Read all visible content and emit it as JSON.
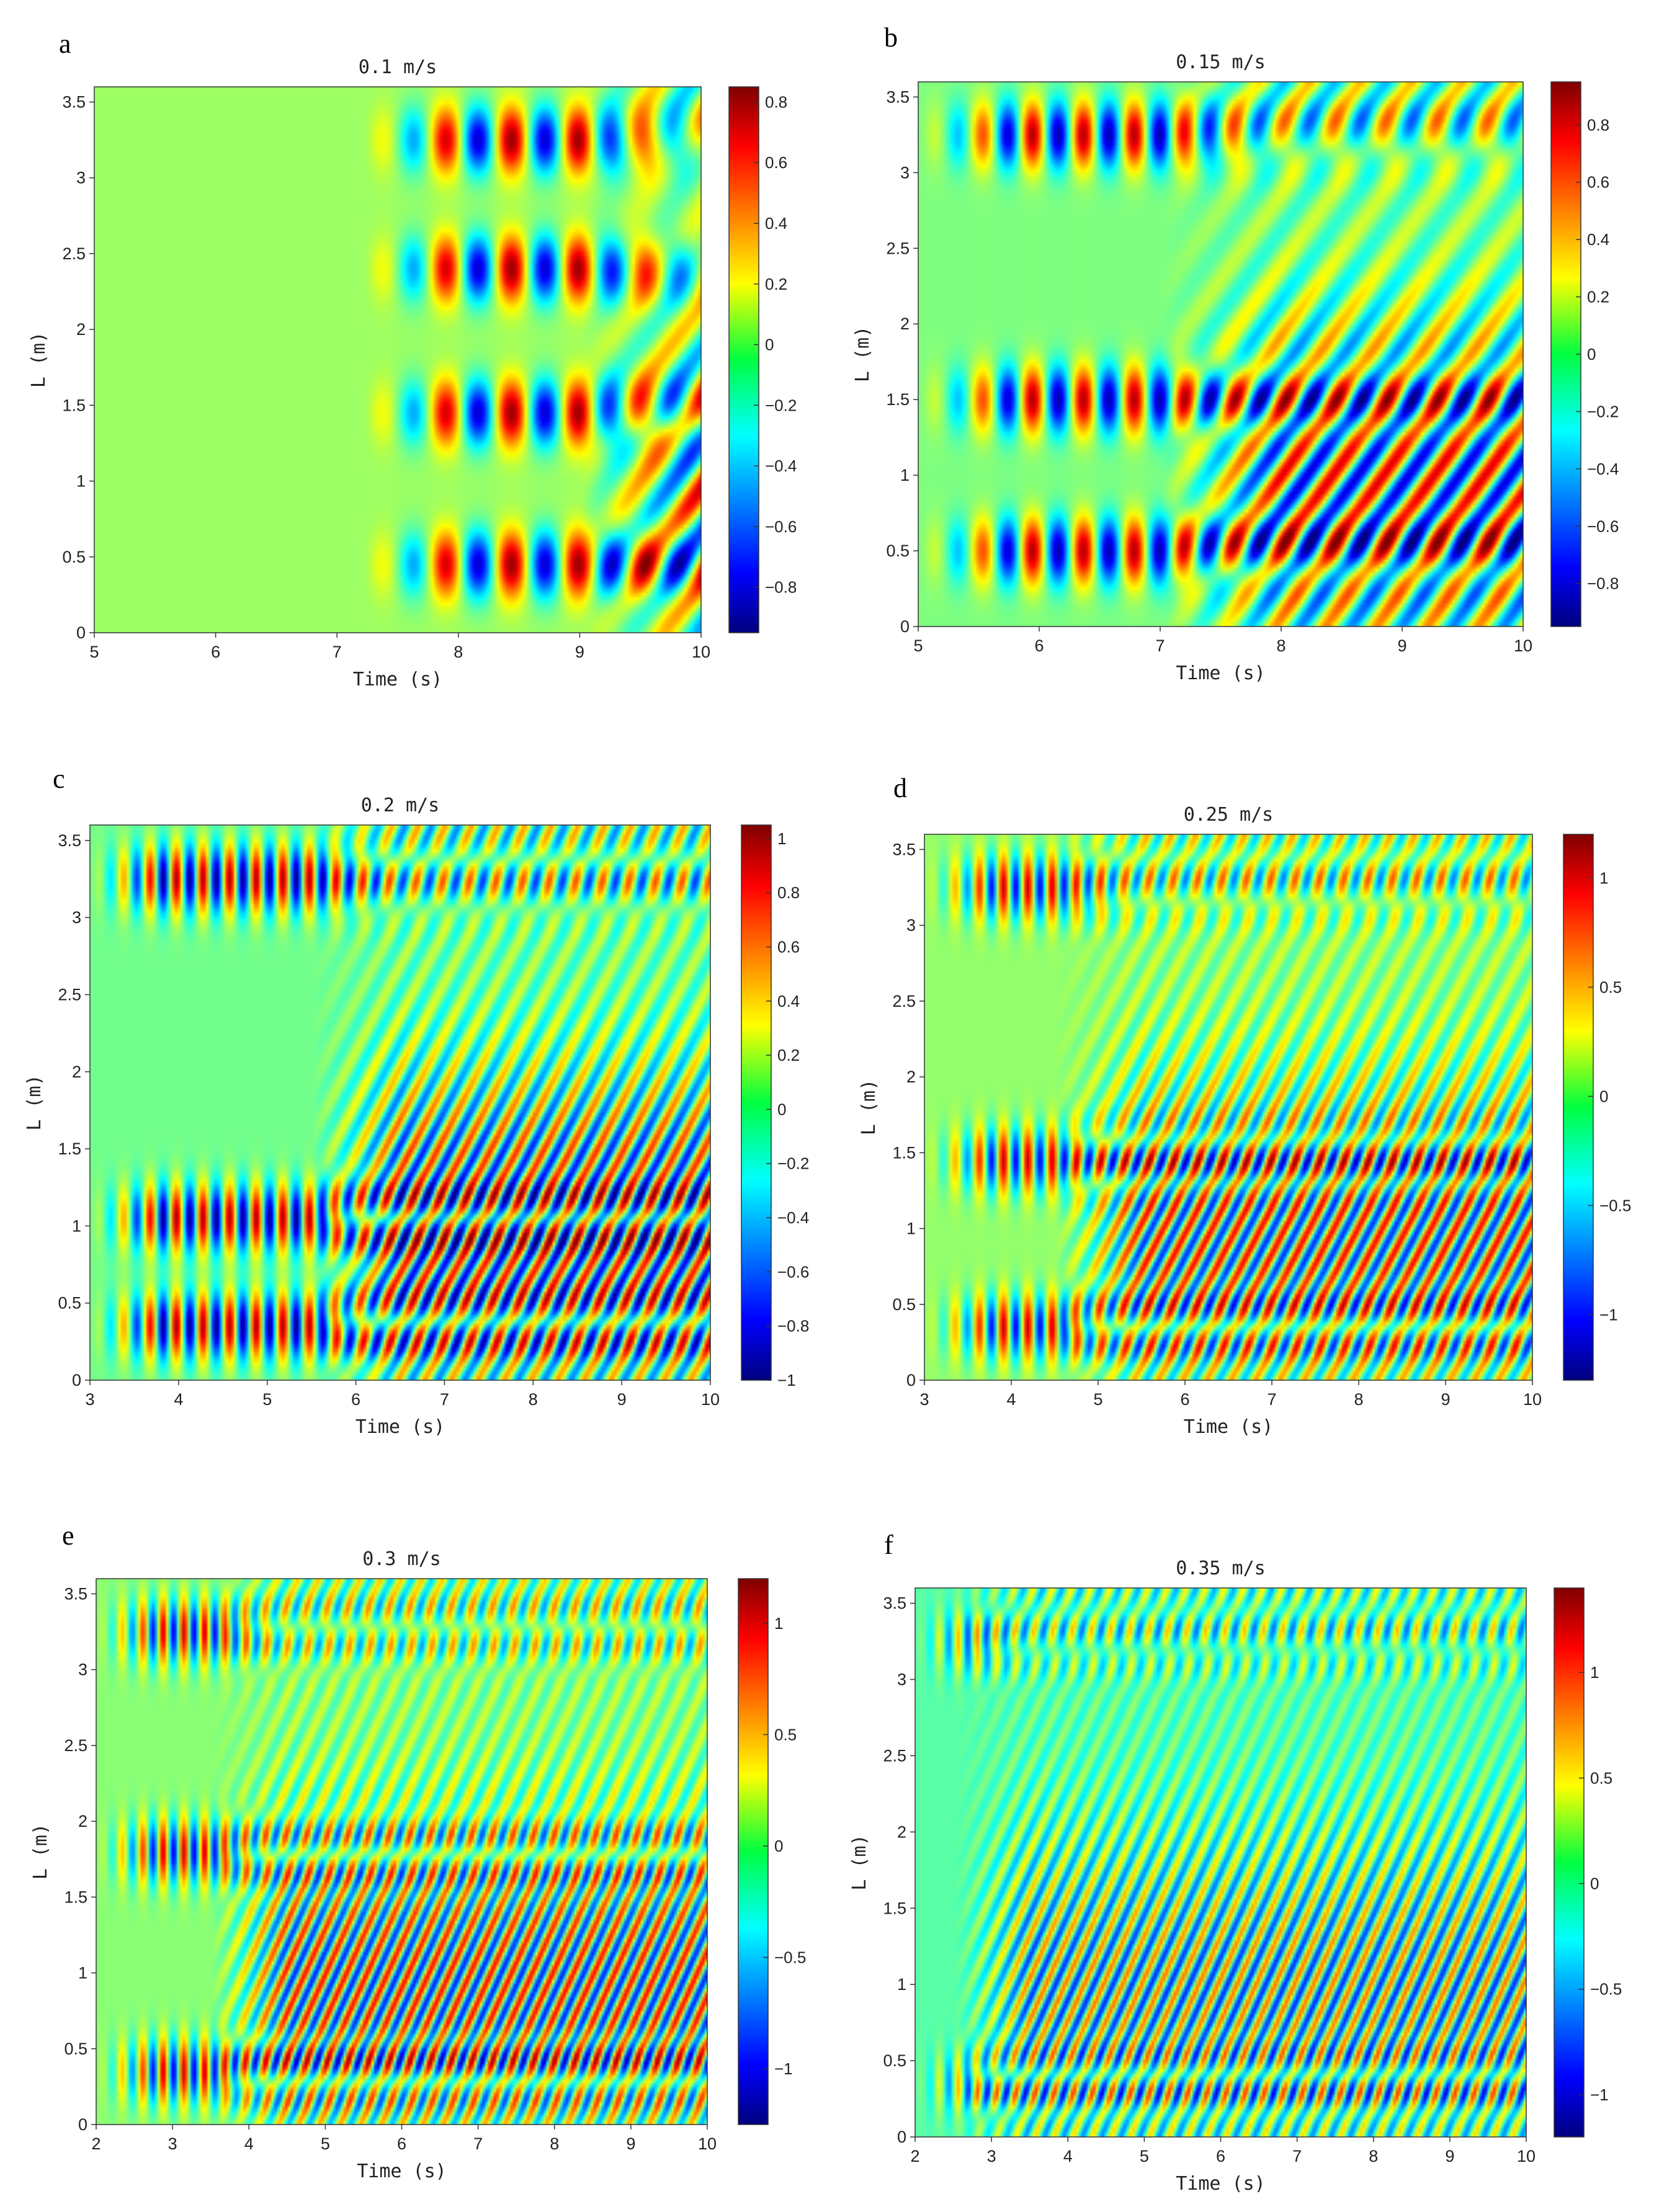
{
  "chart_data": [
    {
      "type": "heatmap",
      "panel": "a",
      "title": "0.1 m/s",
      "xlabel": "Time (s)",
      "ylabel": "L (m)",
      "xlim": [
        5,
        10
      ],
      "ylim": [
        0,
        3.6
      ],
      "xticks": [
        5,
        6,
        7,
        8,
        9,
        10
      ],
      "yticks": [
        0,
        0.5,
        1,
        1.5,
        2,
        2.5,
        3,
        3.5
      ],
      "colorbar": {
        "range": [
          -0.95,
          0.85
        ],
        "ticks": [
          0.8,
          0.6,
          0.4,
          0.2,
          0,
          -0.2,
          -0.4,
          -0.6,
          -0.8
        ]
      },
      "pattern": {
        "start": 7.2,
        "rows": [
          0.45,
          1.45,
          2.4,
          3.25
        ],
        "period": 0.55,
        "amplitude": 0.8,
        "diagonal_from": 9.0
      }
    },
    {
      "type": "heatmap",
      "panel": "b",
      "title": "0.15 m/s",
      "xlabel": "Time (s)",
      "ylabel": "L (m)",
      "xlim": [
        5,
        10
      ],
      "ylim": [
        0,
        3.6
      ],
      "xticks": [
        5,
        6,
        7,
        8,
        9,
        10
      ],
      "yticks": [
        0,
        0.5,
        1,
        1.5,
        2,
        2.5,
        3,
        3.5
      ],
      "colorbar": {
        "range": [
          -0.95,
          0.95
        ],
        "ticks": [
          0.8,
          0.6,
          0.4,
          0.2,
          0,
          -0.2,
          -0.4,
          -0.6,
          -0.8
        ]
      },
      "pattern": {
        "start": 5.0,
        "rows": [
          0.5,
          1.5,
          3.25
        ],
        "period": 0.42,
        "amplitude": 0.85,
        "diagonal_from": 7.0
      }
    },
    {
      "type": "heatmap",
      "panel": "c",
      "title": "0.2 m/s",
      "xlabel": "Time (s)",
      "ylabel": "L (m)",
      "xlim": [
        3,
        10
      ],
      "ylim": [
        0,
        3.6
      ],
      "xticks": [
        3,
        4,
        5,
        6,
        7,
        8,
        9,
        10
      ],
      "yticks": [
        0,
        0.5,
        1,
        1.5,
        2,
        2.5,
        3,
        3.5
      ],
      "colorbar": {
        "range": [
          -1.0,
          1.05
        ],
        "ticks": [
          1,
          0.8,
          0.6,
          0.4,
          0.2,
          0,
          -0.2,
          -0.4,
          -0.6,
          -0.8,
          -1
        ]
      },
      "pattern": {
        "start": 3.0,
        "rows": [
          0.35,
          1.05,
          3.25
        ],
        "period": 0.3,
        "amplitude": 0.95,
        "diagonal_from": 5.5
      }
    },
    {
      "type": "heatmap",
      "panel": "d",
      "title": "0.25 m/s",
      "xlabel": "Time (s)",
      "ylabel": "L (m)",
      "xlim": [
        3,
        10
      ],
      "ylim": [
        0,
        3.6
      ],
      "xticks": [
        3,
        4,
        5,
        6,
        7,
        8,
        9,
        10
      ],
      "yticks": [
        0,
        0.5,
        1,
        1.5,
        2,
        2.5,
        3,
        3.5
      ],
      "colorbar": {
        "range": [
          -1.3,
          1.2
        ],
        "ticks": [
          1,
          0.5,
          0,
          -0.5,
          -1
        ]
      },
      "pattern": {
        "start": 3.0,
        "rows": [
          0.35,
          1.45,
          3.25
        ],
        "period": 0.28,
        "amplitude": 1.0,
        "diagonal_from": 4.5
      }
    },
    {
      "type": "heatmap",
      "panel": "e",
      "title": "0.3 m/s",
      "xlabel": "Time (s)",
      "ylabel": "L (m)",
      "xlim": [
        2,
        10
      ],
      "ylim": [
        0,
        3.6
      ],
      "xticks": [
        2,
        3,
        4,
        5,
        6,
        7,
        8,
        9,
        10
      ],
      "yticks": [
        0,
        0.5,
        1,
        1.5,
        2,
        2.5,
        3,
        3.5
      ],
      "colorbar": {
        "range": [
          -1.25,
          1.2
        ],
        "ticks": [
          1,
          0.5,
          0,
          -0.5,
          -1
        ]
      },
      "pattern": {
        "start": 2.0,
        "rows": [
          0.35,
          1.8,
          3.25
        ],
        "period": 0.27,
        "amplitude": 1.0,
        "diagonal_from": 3.5
      }
    },
    {
      "type": "heatmap",
      "panel": "f",
      "title": "0.35 m/s",
      "xlabel": "Time (s)",
      "ylabel": "L (m)",
      "xlim": [
        2,
        10
      ],
      "ylim": [
        0,
        3.6
      ],
      "xticks": [
        2,
        3,
        4,
        5,
        6,
        7,
        8,
        9,
        10
      ],
      "yticks": [
        0,
        0.5,
        1,
        1.5,
        2,
        2.5,
        3,
        3.5
      ],
      "colorbar": {
        "range": [
          -1.2,
          1.4
        ],
        "ticks": [
          1,
          0.5,
          0,
          -0.5,
          -1
        ]
      },
      "pattern": {
        "start": 2.0,
        "rows": [
          0.35,
          3.25
        ],
        "period": 0.25,
        "amplitude": 0.9,
        "diagonal_from": 2.5
      }
    }
  ]
}
